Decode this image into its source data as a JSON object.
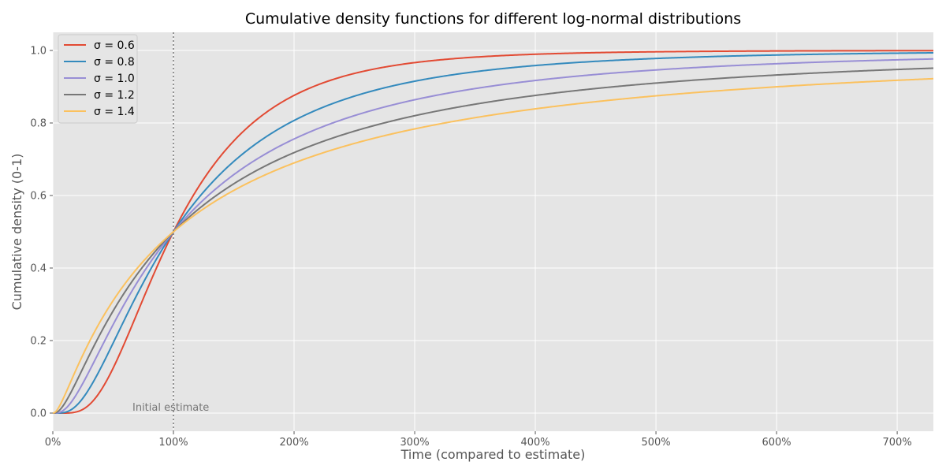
{
  "chart_data": {
    "type": "line",
    "title": "Cumulative density functions for different log-normal distributions",
    "xlabel": "Time (compared to estimate)",
    "ylabel": "Cumulative density (0-1)",
    "xlim": [
      0,
      7.3
    ],
    "ylim": [
      -0.05,
      1.05
    ],
    "x_ticks": [
      0,
      1,
      2,
      3,
      4,
      5,
      6,
      7
    ],
    "x_tick_labels": [
      "0%",
      "100%",
      "200%",
      "300%",
      "400%",
      "500%",
      "600%",
      "700%"
    ],
    "y_ticks": [
      0.0,
      0.2,
      0.4,
      0.6,
      0.8,
      1.0
    ],
    "y_tick_labels": [
      "0.0",
      "0.2",
      "0.4",
      "0.6",
      "0.8",
      "1.0"
    ],
    "grid": true,
    "legend_position": "top-left",
    "distribution": "log-normal, median 1",
    "series": [
      {
        "name": "σ = 0.6",
        "sigma": 0.6,
        "color": "#E24A33"
      },
      {
        "name": "σ = 0.8",
        "sigma": 0.8,
        "color": "#348ABD"
      },
      {
        "name": "σ = 1.0",
        "sigma": 1.0,
        "color": "#988ED5"
      },
      {
        "name": "σ = 1.2",
        "sigma": 1.2,
        "color": "#777777"
      },
      {
        "name": "σ = 1.4",
        "sigma": 1.4,
        "color": "#FBC15E"
      }
    ],
    "annotations": [
      {
        "text": "Initial estimate",
        "x": 1.0,
        "style": "dotted vertical line"
      }
    ],
    "colors": {
      "plot_background": "#E5E5E5",
      "grid": "#FFFFFF"
    }
  }
}
